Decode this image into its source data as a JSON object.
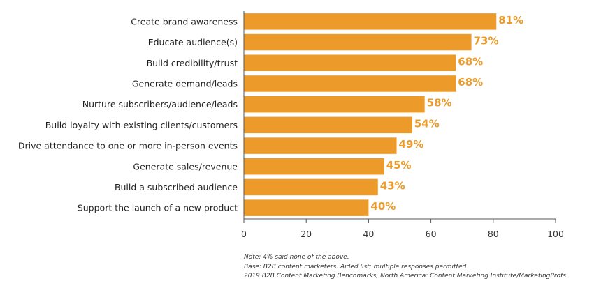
{
  "chart_data": {
    "type": "bar",
    "orientation": "horizontal",
    "categories": [
      "Create brand awareness",
      "Educate audience(s)",
      "Build credibility/trust",
      "Generate demand/leads",
      "Nurture subscribers/audience/leads",
      "Build loyalty with existing clients/customers",
      "Drive attendance to one or more in-person events",
      "Generate sales/revenue",
      "Build a subscribed audience",
      "Support the launch of a new product"
    ],
    "values": [
      81,
      73,
      68,
      68,
      58,
      54,
      49,
      45,
      43,
      40
    ],
    "value_labels": [
      "81%",
      "73%",
      "68%",
      "68%",
      "58%",
      "54%",
      "49%",
      "45%",
      "43%",
      "40%"
    ],
    "xlim": [
      0,
      100
    ],
    "xticks": [
      0,
      20,
      40,
      60,
      80,
      100
    ],
    "grid": false,
    "legend": "none",
    "bar_color": "#ec9b2a",
    "label_color": "#ec9b2a"
  },
  "notes": [
    "Note: 4% said none of the above.",
    "Base: B2B content marketers. Aided list; multiple responses permitted",
    "2019 B2B Content Marketing Benchmarks, North America: Content Marketing Institute/MarketingProfs"
  ]
}
